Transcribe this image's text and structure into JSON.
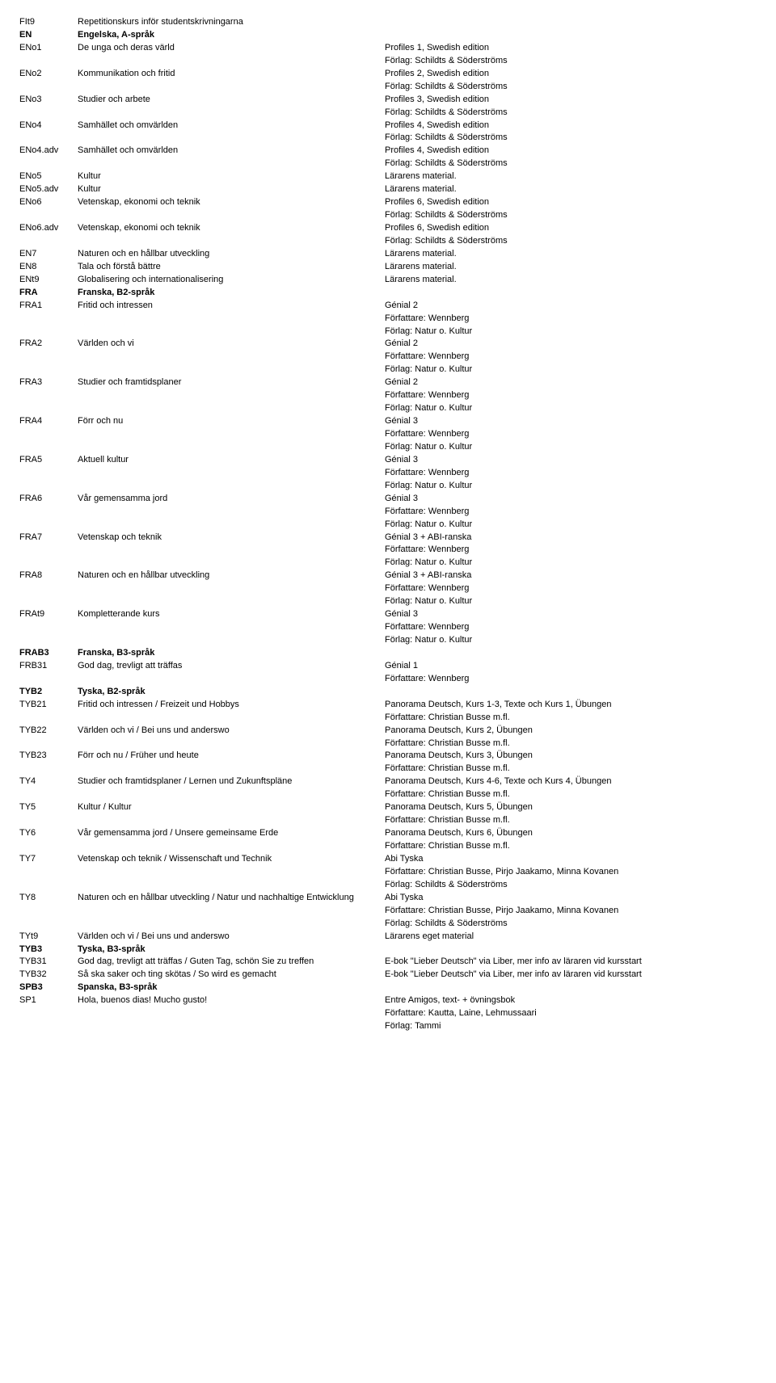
{
  "rows": [
    {
      "code": "FIt9",
      "name": "Repetitionskurs inför studentskrivningarna",
      "details": []
    },
    {
      "code": "EN",
      "name": "Engelska, A-språk",
      "bold": true,
      "details": []
    },
    {
      "code": "ENo1",
      "name": "De unga och deras värld",
      "details": [
        "Profiles 1, Swedish edition",
        "Förlag: Schildts & Söderströms"
      ]
    },
    {
      "code": "ENo2",
      "name": "Kommunikation och fritid",
      "details": [
        "Profiles 2, Swedish edition",
        "Förlag: Schildts & Söderströms"
      ]
    },
    {
      "code": "ENo3",
      "name": "Studier och arbete",
      "details": [
        "Profiles 3, Swedish edition",
        "Förlag: Schildts & Söderströms"
      ]
    },
    {
      "code": "ENo4",
      "name": "Samhället och omvärlden",
      "details": [
        "Profiles 4, Swedish edition",
        "Förlag: Schildts & Söderströms"
      ]
    },
    {
      "code": "ENo4.adv",
      "name": "Samhället och omvärlden",
      "details": [
        "Profiles 4, Swedish edition",
        "Förlag: Schildts & Söderströms"
      ]
    },
    {
      "code": "ENo5",
      "name": "Kultur",
      "details": [
        "Lärarens material."
      ]
    },
    {
      "code": "ENo5.adv",
      "name": "Kultur",
      "details": [
        "Lärarens material."
      ]
    },
    {
      "code": "ENo6",
      "name": "Vetenskap, ekonomi och teknik",
      "details": [
        "Profiles 6, Swedish edition",
        "Förlag: Schildts & Söderströms"
      ]
    },
    {
      "code": "ENo6.adv",
      "name": "Vetenskap, ekonomi och teknik",
      "details": [
        "Profiles 6, Swedish edition",
        "Förlag: Schildts & Söderströms"
      ]
    },
    {
      "code": "EN7",
      "name": "Naturen och en hållbar utveckling",
      "details": [
        "Lärarens material."
      ]
    },
    {
      "code": "EN8",
      "name": "Tala och förstå bättre",
      "details": [
        "Lärarens material."
      ]
    },
    {
      "code": "ENt9",
      "name": "Globalisering och internationalisering",
      "details": [
        "Lärarens material."
      ]
    },
    {
      "code": "FRA",
      "name": "Franska, B2-språk",
      "bold": true,
      "details": []
    },
    {
      "code": "FRA1",
      "name": "Fritid och intressen",
      "details": [
        "Génial 2",
        "Författare: Wennberg",
        "Förlag: Natur o. Kultur"
      ]
    },
    {
      "code": "FRA2",
      "name": "Världen och vi",
      "details": [
        "Génial 2",
        "Författare: Wennberg",
        "Förlag: Natur o. Kultur"
      ]
    },
    {
      "code": "FRA3",
      "name": "Studier och framtidsplaner",
      "details": [
        "Génial 2",
        "Författare: Wennberg",
        "Förlag: Natur o. Kultur"
      ]
    },
    {
      "code": "FRA4",
      "name": "Förr och nu",
      "details": [
        "Génial 3",
        "Författare: Wennberg",
        "Förlag: Natur o. Kultur"
      ]
    },
    {
      "code": "FRA5",
      "name": "Aktuell kultur",
      "details": [
        "Génial 3",
        "Författare: Wennberg",
        "Förlag: Natur o. Kultur"
      ]
    },
    {
      "code": "FRA6",
      "name": "Vår gemensamma jord",
      "details": [
        "Génial 3",
        "Författare: Wennberg",
        "Förlag: Natur o. Kultur"
      ]
    },
    {
      "code": "FRA7",
      "name": "Vetenskap och teknik",
      "details": [
        "Génial 3 + ABI-ranska",
        "Författare: Wennberg",
        "Förlag: Natur o. Kultur"
      ]
    },
    {
      "code": "FRA8",
      "name": "Naturen och en hållbar utveckling",
      "details": [
        "Génial 3 + ABI-ranska",
        "Författare: Wennberg",
        "Förlag: Natur o. Kultur"
      ]
    },
    {
      "code": "FRAt9",
      "name": "Kompletterande kurs",
      "details": [
        "Génial 3",
        "Författare: Wennberg",
        "Förlag: Natur o. Kultur"
      ]
    },
    {
      "code": "FRAB3",
      "name": "Franska, B3-språk",
      "bold": true,
      "details": []
    },
    {
      "code": "FRB31",
      "name": "God dag, trevligt att träffas",
      "details": [
        "Génial 1",
        "Författare: Wennberg"
      ]
    },
    {
      "code": "TYB2",
      "name": "Tyska, B2-språk",
      "bold": true,
      "details": []
    },
    {
      "code": "TYB21",
      "name": "Fritid och intressen / Freizeit und Hobbys",
      "details": [
        "Panorama Deutsch, Kurs 1-3, Texte och Kurs 1, Übungen",
        "Författare: Christian Busse m.fl."
      ]
    },
    {
      "code": "TYB22",
      "name": "Världen och vi / Bei uns und anderswo",
      "details": [
        "Panorama Deutsch, Kurs 2, Übungen",
        "Författare: Christian Busse m.fl."
      ]
    },
    {
      "code": "TYB23",
      "name": "Förr och nu / Früher und heute",
      "details": [
        "Panorama Deutsch, Kurs 3, Übungen",
        "Författare: Christian Busse m.fl."
      ]
    },
    {
      "code": "TY4",
      "name": "Studier och framtidsplaner / Lernen und Zukunftspläne",
      "details": [
        "Panorama Deutsch, Kurs 4-6, Texte och Kurs 4, Übungen",
        "Författare: Christian Busse m.fl."
      ]
    },
    {
      "code": "TY5",
      "name": "Kultur / Kultur",
      "details": [
        "Panorama Deutsch, Kurs 5, Übungen",
        "Författare: Christian Busse m.fl."
      ]
    },
    {
      "code": "TY6",
      "name": "Vår gemensamma jord / Unsere gemeinsame Erde",
      "details": [
        "Panorama Deutsch, Kurs 6, Übungen",
        "Författare: Christian Busse m.fl."
      ]
    },
    {
      "code": "TY7",
      "name": "Vetenskap och teknik / Wissenschaft und Technik",
      "details": [
        "Abi Tyska",
        "Författare: Christian Busse, Pirjo Jaakamo, Minna Kovanen",
        "Förlag: Schildts & Söderströms"
      ]
    },
    {
      "code": "TY8",
      "name": "Naturen och en hållbar utveckling / Natur und nachhaltige Entwicklung",
      "details": [
        "Abi Tyska",
        "Författare: Christian Busse, Pirjo Jaakamo, Minna Kovanen",
        "Förlag: Schildts & Söderströms"
      ]
    },
    {
      "code": "TYt9",
      "name": "Världen och vi / Bei uns und anderswo",
      "details": [
        "Lärarens eget material"
      ]
    },
    {
      "code": "TYB3",
      "name": "Tyska, B3-språk",
      "bold": true,
      "details": []
    },
    {
      "code": "TYB31",
      "name": "God dag, trevligt att träffas / Guten Tag, schön Sie zu treffen",
      "details": [
        "E-bok \"Lieber Deutsch\" via Liber, mer info av läraren vid kursstart"
      ]
    },
    {
      "code": "TYB32",
      "name": "Så ska saker och ting skötas / So wird es gemacht",
      "details": [
        "E-bok \"Lieber Deutsch\" via Liber, mer info av läraren vid kursstart"
      ]
    },
    {
      "code": "SPB3",
      "name": "Spanska, B3-språk",
      "bold": true,
      "details": []
    },
    {
      "code": "SP1",
      "name": "Hola, buenos dias! Mucho gusto!",
      "details": [
        "Entre Amigos, text- + övningsbok",
        "Författare: Kautta, Laine, Lehmussaari",
        "Förlag: Tammi"
      ]
    }
  ]
}
